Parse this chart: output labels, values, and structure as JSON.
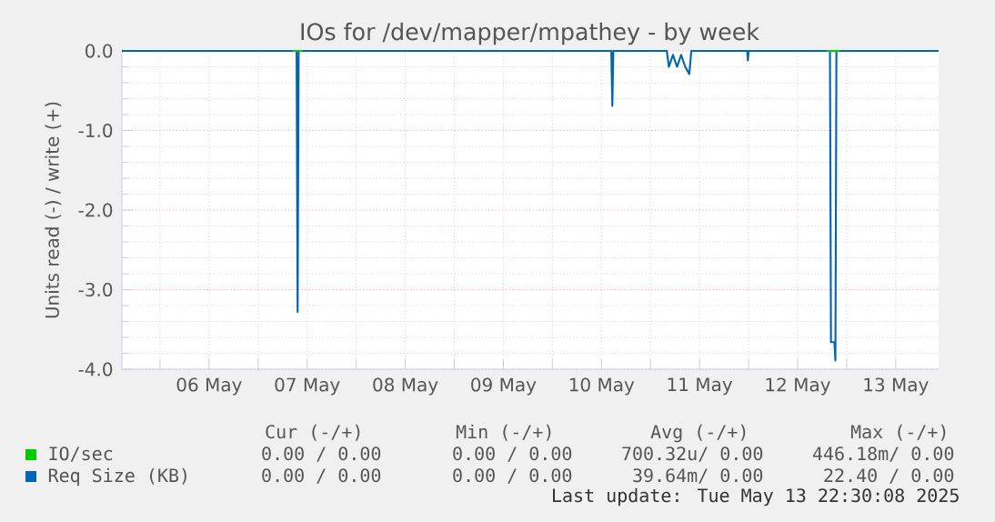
{
  "chart_data": {
    "type": "line",
    "title": "IOs for /dev/mapper/mpathey - by week",
    "ylabel": "Units read (-) / write (+)",
    "xlim": [
      "2025-05-05T14:40",
      "2025-05-13T22:30"
    ],
    "xticks": [
      {
        "value": "2025-05-06T12:00",
        "label": "06 May"
      },
      {
        "value": "2025-05-07T12:00",
        "label": "07 May"
      },
      {
        "value": "2025-05-08T12:00",
        "label": "08 May"
      },
      {
        "value": "2025-05-09T12:00",
        "label": "09 May"
      },
      {
        "value": "2025-05-10T12:00",
        "label": "10 May"
      },
      {
        "value": "2025-05-11T12:00",
        "label": "11 May"
      },
      {
        "value": "2025-05-12T12:00",
        "label": "12 May"
      },
      {
        "value": "2025-05-13T12:00",
        "label": "13 May"
      },
      {
        "value": "2025-05-06",
        "label": null
      },
      {
        "value": "2025-05-07",
        "label": null
      },
      {
        "value": "2025-05-08",
        "label": null
      },
      {
        "value": "2025-05-09",
        "label": null
      },
      {
        "value": "2025-05-10",
        "label": null
      },
      {
        "value": "2025-05-11",
        "label": null
      },
      {
        "value": "2025-05-12",
        "label": null
      },
      {
        "value": "2025-05-13",
        "label": null
      }
    ],
    "ylim": [
      -4.0,
      0.0
    ],
    "yticks": [
      {
        "value": 0,
        "label": "0.0"
      },
      {
        "value": -1,
        "label": "-1.0"
      },
      {
        "value": -2,
        "label": "-2.0"
      },
      {
        "value": -3,
        "label": "-3.0"
      },
      {
        "value": -4,
        "label": "-4.0"
      }
    ],
    "grid": true,
    "legend": "bottom",
    "series": [
      {
        "name": "IO/sec",
        "color": "#00cc00",
        "x": [
          "2025-05-07T08:30",
          "2025-05-07T10:50",
          "2025-05-10T00:00",
          "2025-05-12T19:10",
          "2025-05-12T22:20"
        ],
        "values": [
          0,
          0,
          null,
          0,
          0
        ]
      },
      {
        "name": "Req Size (KB)",
        "color": "#0066b3",
        "x": [
          "2025-05-05T14:40",
          "2025-05-07T09:25",
          "2025-05-07T09:40",
          "2025-05-07T09:55",
          "2025-05-10T14:25",
          "2025-05-10T14:40",
          "2025-05-10T14:55",
          "2025-05-11T04:00",
          "2025-05-11T04:30",
          "2025-05-11T05:30",
          "2025-05-11T06:30",
          "2025-05-11T07:30",
          "2025-05-11T08:30",
          "2025-05-11T09:30",
          "2025-05-11T10:00",
          "2025-05-11T23:40",
          "2025-05-11T23:50",
          "2025-05-12T00:00",
          "2025-05-12T19:55",
          "2025-05-12T20:10",
          "2025-05-12T21:00",
          "2025-05-12T21:15",
          "2025-05-12T21:30",
          "2025-05-13T22:30"
        ],
        "values": [
          0,
          0,
          -3.28,
          0,
          0,
          -0.69,
          0,
          0,
          -0.2,
          -0.05,
          -0.2,
          -0.05,
          -0.2,
          -0.29,
          0,
          0,
          -0.12,
          0,
          0,
          -3.66,
          -3.66,
          -3.89,
          0,
          0
        ]
      }
    ],
    "annotations": [
      "Cur (-/+)",
      "Min (-/+)",
      "Avg (-/+)",
      "Max (-/+)",
      "0.00 /  0.00",
      "0.00 /  0.00",
      "700.32u/  0.00",
      "446.18m/  0.00",
      "0.00 /  0.00",
      "0.00 /  0.00",
      "39.64m/  0.00",
      "22.40 /  0.00",
      "Last update: Tue May 13 22:30:08 2025"
    ]
  }
}
